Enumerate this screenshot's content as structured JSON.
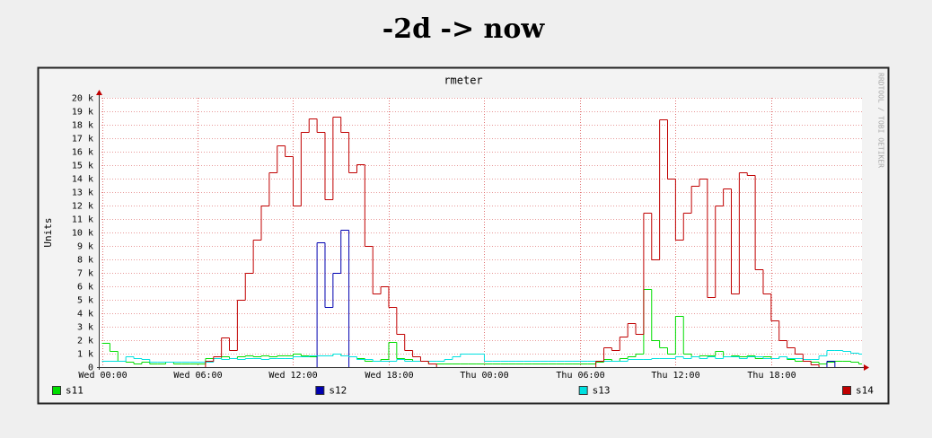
{
  "heading": "-2d -> now",
  "chart_data": {
    "type": "step-line",
    "title": "rmeter",
    "y_label": "Units",
    "watermark": "RRDTOOL / TOBI OETIKER",
    "x": [
      0,
      0.5,
      1,
      1.5,
      2,
      2.5,
      3,
      3.5,
      4,
      4.5,
      5,
      5.5,
      6,
      6.5,
      7,
      7.5,
      8,
      8.5,
      9,
      9.5,
      10,
      10.5,
      11,
      11.5,
      12,
      12.5,
      13,
      13.5,
      14,
      14.5,
      15,
      15.5,
      16,
      16.5,
      17,
      17.5,
      18,
      18.5,
      19,
      19.5,
      20,
      20.5,
      21,
      21.5,
      22,
      22.5,
      23,
      23.5,
      24,
      24.5,
      25,
      25.5,
      26,
      26.5,
      27,
      27.5,
      28,
      28.5,
      29,
      29.5,
      30,
      30.5,
      31,
      31.5,
      32,
      32.5,
      33,
      33.5,
      34,
      34.5,
      35,
      35.5,
      36,
      36.5,
      37,
      37.5,
      38,
      38.5,
      39,
      39.5,
      40,
      40.5,
      41,
      41.5,
      42,
      42.5,
      43,
      43.5,
      44,
      44.5,
      45,
      45.5,
      46,
      46.5,
      47,
      47.5
    ],
    "xlim": [
      -0.2,
      47.7
    ],
    "xticks": [
      {
        "value": 0,
        "label": "Wed 00:00"
      },
      {
        "value": 6,
        "label": "Wed 06:00"
      },
      {
        "value": 12,
        "label": "Wed 12:00"
      },
      {
        "value": 18,
        "label": "Wed 18:00"
      },
      {
        "value": 24,
        "label": "Thu 00:00"
      },
      {
        "value": 30,
        "label": "Thu 06:00"
      },
      {
        "value": 36,
        "label": "Thu 12:00"
      },
      {
        "value": 42,
        "label": "Thu 18:00"
      }
    ],
    "ylim": [
      0,
      20000
    ],
    "yticks": [
      0,
      {
        "value": 1000,
        "label": "1 k"
      },
      {
        "value": 2000,
        "label": "2 k"
      },
      {
        "value": 3000,
        "label": "3 k"
      },
      {
        "value": 4000,
        "label": "4 k"
      },
      {
        "value": 5000,
        "label": "5 k"
      },
      {
        "value": 6000,
        "label": "6 k"
      },
      {
        "value": 7000,
        "label": "7 k"
      },
      {
        "value": 8000,
        "label": "8 k"
      },
      {
        "value": 9000,
        "label": "9 k"
      },
      {
        "value": 10000,
        "label": "10 k"
      },
      {
        "value": 11000,
        "label": "11 k"
      },
      {
        "value": 12000,
        "label": "12 k"
      },
      {
        "value": 13000,
        "label": "13 k"
      },
      {
        "value": 14000,
        "label": "14 k"
      },
      {
        "value": 15000,
        "label": "15 k"
      },
      {
        "value": 16000,
        "label": "16 k"
      },
      {
        "value": 17000,
        "label": "17 k"
      },
      {
        "value": 18000,
        "label": "18 k"
      },
      {
        "value": 19000,
        "label": "19 k"
      },
      {
        "value": 20000,
        "label": "20 k"
      }
    ],
    "grid": true,
    "series": [
      {
        "name": "s11",
        "color": "#00dd00",
        "values": [
          1800,
          1200,
          500,
          400,
          300,
          400,
          300,
          300,
          400,
          300,
          300,
          300,
          300,
          700,
          700,
          800,
          700,
          800,
          900,
          800,
          900,
          800,
          900,
          900,
          1000,
          900,
          800,
          900,
          900,
          1000,
          900,
          800,
          700,
          500,
          500,
          600,
          1900,
          700,
          600,
          500,
          500,
          300,
          300,
          300,
          300,
          300,
          300,
          300,
          300,
          300,
          300,
          300,
          300,
          300,
          300,
          300,
          300,
          300,
          300,
          300,
          300,
          300,
          400,
          600,
          500,
          700,
          800,
          1000,
          5800,
          2000,
          1500,
          1000,
          3800,
          1000,
          800,
          900,
          900,
          1200,
          800,
          900,
          800,
          900,
          700,
          800,
          700,
          800,
          600,
          500,
          500,
          400,
          300,
          400,
          500,
          500,
          400,
          300
        ]
      },
      {
        "name": "s12",
        "color": "#0000b0",
        "values": [
          0,
          0,
          0,
          0,
          0,
          0,
          0,
          0,
          0,
          0,
          0,
          0,
          0,
          0,
          0,
          0,
          0,
          0,
          0,
          0,
          0,
          0,
          0,
          0,
          0,
          0,
          0,
          9300,
          4500,
          7000,
          10200,
          0,
          0,
          0,
          0,
          0,
          0,
          0,
          0,
          0,
          0,
          0,
          0,
          0,
          0,
          0,
          0,
          0,
          0,
          0,
          0,
          0,
          0,
          0,
          0,
          0,
          0,
          0,
          0,
          0,
          0,
          0,
          0,
          0,
          0,
          0,
          0,
          0,
          0,
          0,
          0,
          0,
          0,
          0,
          0,
          0,
          0,
          0,
          0,
          0,
          0,
          0,
          0,
          0,
          0,
          0,
          0,
          0,
          0,
          0,
          0,
          500,
          0,
          0,
          0,
          0
        ]
      },
      {
        "name": "s13",
        "color": "#00e0e0",
        "values": [
          500,
          500,
          500,
          800,
          700,
          600,
          400,
          400,
          400,
          400,
          400,
          400,
          400,
          400,
          700,
          600,
          700,
          600,
          700,
          700,
          600,
          700,
          700,
          700,
          800,
          800,
          900,
          900,
          900,
          1000,
          900,
          800,
          600,
          600,
          500,
          500,
          500,
          600,
          500,
          500,
          500,
          500,
          500,
          600,
          800,
          1000,
          1000,
          1000,
          500,
          500,
          500,
          500,
          500,
          500,
          500,
          500,
          500,
          500,
          500,
          500,
          500,
          500,
          500,
          500,
          500,
          500,
          600,
          600,
          600,
          700,
          700,
          700,
          800,
          700,
          800,
          700,
          800,
          700,
          800,
          800,
          700,
          800,
          800,
          700,
          700,
          800,
          700,
          700,
          600,
          600,
          900,
          1300,
          1300,
          1200,
          1100,
          1000
        ]
      },
      {
        "name": "s14",
        "color": "#c00000",
        "values": [
          0,
          0,
          0,
          0,
          0,
          0,
          0,
          0,
          0,
          0,
          0,
          0,
          0,
          500,
          800,
          2200,
          1300,
          5000,
          7000,
          9500,
          12000,
          14500,
          16500,
          15700,
          12000,
          17500,
          18500,
          17500,
          12500,
          18600,
          17500,
          14500,
          15100,
          9000,
          5500,
          6000,
          4500,
          2500,
          1300,
          800,
          500,
          300,
          0,
          0,
          0,
          0,
          0,
          0,
          0,
          0,
          0,
          0,
          0,
          0,
          0,
          0,
          0,
          0,
          0,
          0,
          0,
          0,
          500,
          1500,
          1300,
          2300,
          3300,
          2500,
          11500,
          8000,
          18400,
          14000,
          9500,
          11500,
          13500,
          14000,
          5200,
          12000,
          13300,
          5500,
          14500,
          14300,
          7300,
          5500,
          3500,
          2000,
          1500,
          1000,
          500,
          200,
          0,
          0,
          0,
          0,
          0,
          0
        ]
      }
    ]
  }
}
